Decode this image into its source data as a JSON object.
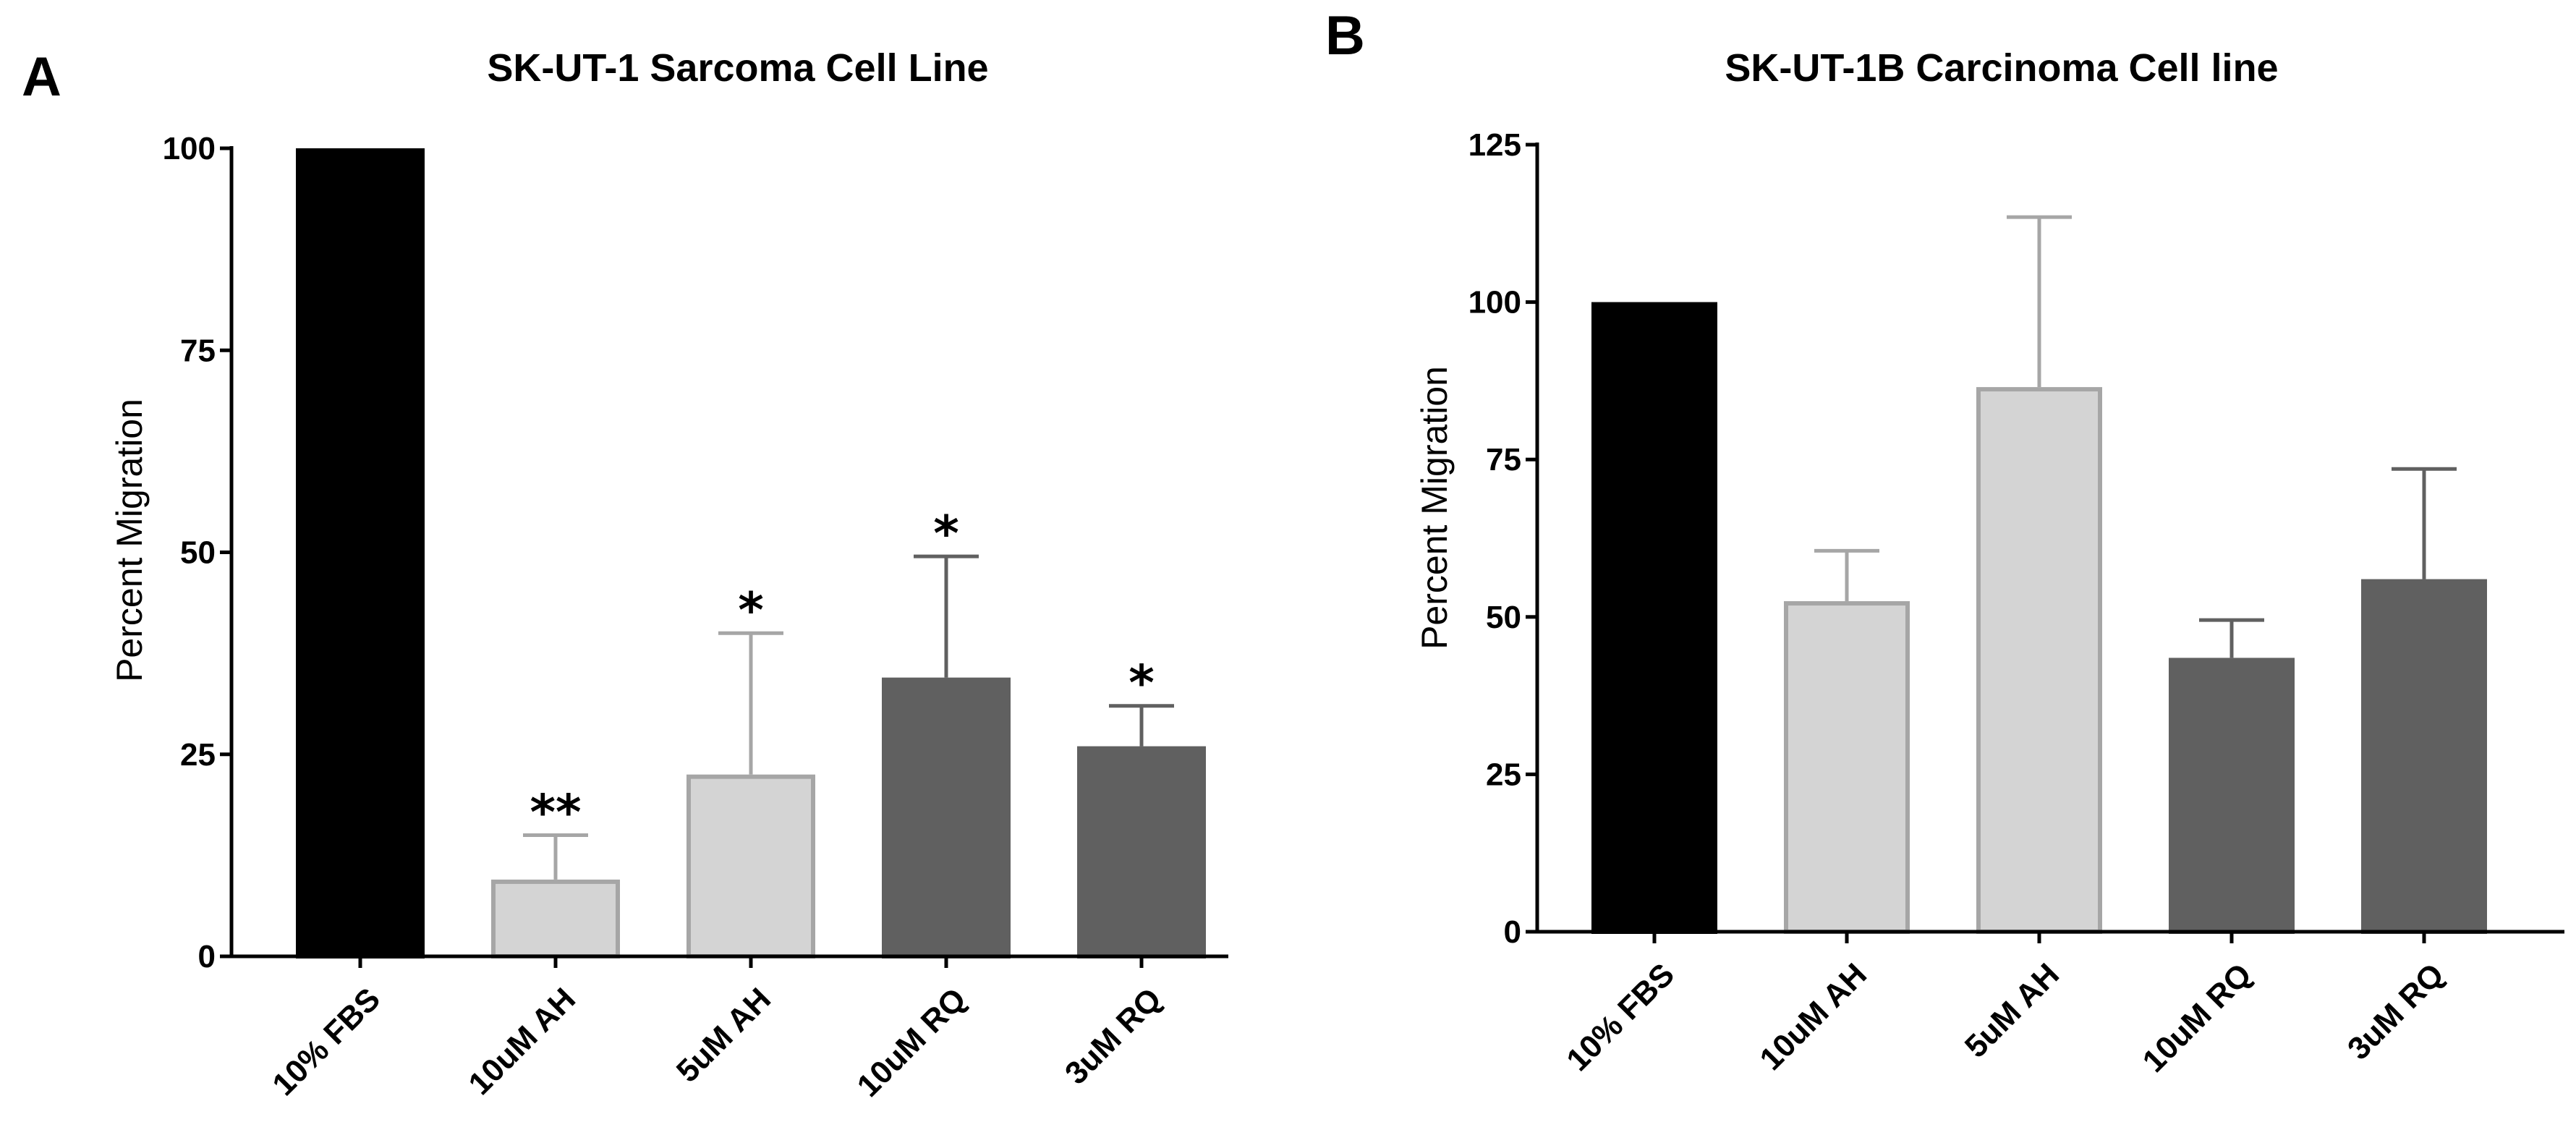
{
  "chart_data": [
    {
      "type": "bar",
      "panel": "A",
      "title": "SK-UT-1 Sarcoma Cell Line",
      "xlabel": "",
      "ylabel": "Percent Migration",
      "ylim": [
        0,
        100
      ],
      "yticks": [
        0,
        25,
        50,
        75,
        100
      ],
      "categories": [
        "10% FBS",
        "10uM AH",
        "5uM AH",
        "10uM RQ",
        "3uM RQ"
      ],
      "values": [
        100,
        9.5,
        22.5,
        34.5,
        26
      ],
      "errors": [
        0,
        5.5,
        17.5,
        15,
        5
      ],
      "significance": [
        "",
        "**",
        "*",
        "*",
        "*"
      ],
      "colors": [
        "#000000",
        "#d4d4d4",
        "#d4d4d4",
        "#606060",
        "#606060"
      ],
      "edge_colors": [
        "#000000",
        "#a6a6a6",
        "#a6a6a6",
        "#606060",
        "#606060"
      ],
      "grid": false
    },
    {
      "type": "bar",
      "panel": "B",
      "title": "SK-UT-1B Carcinoma Cell  line",
      "xlabel": "",
      "ylabel": "Percent Migration",
      "ylim": [
        0,
        125
      ],
      "yticks": [
        0,
        25,
        50,
        75,
        100,
        125
      ],
      "categories": [
        "10% FBS",
        "10uM AH",
        "5uM AH",
        "10uM RQ",
        "3uM RQ"
      ],
      "values": [
        100,
        52.5,
        86.5,
        43.5,
        56
      ],
      "errors": [
        0,
        8,
        27,
        6,
        17.5
      ],
      "significance": [
        "",
        "",
        "",
        "",
        ""
      ],
      "colors": [
        "#000000",
        "#d4d4d4",
        "#d4d4d4",
        "#606060",
        "#606060"
      ],
      "edge_colors": [
        "#000000",
        "#a6a6a6",
        "#a6a6a6",
        "#606060",
        "#606060"
      ],
      "grid": false
    }
  ]
}
